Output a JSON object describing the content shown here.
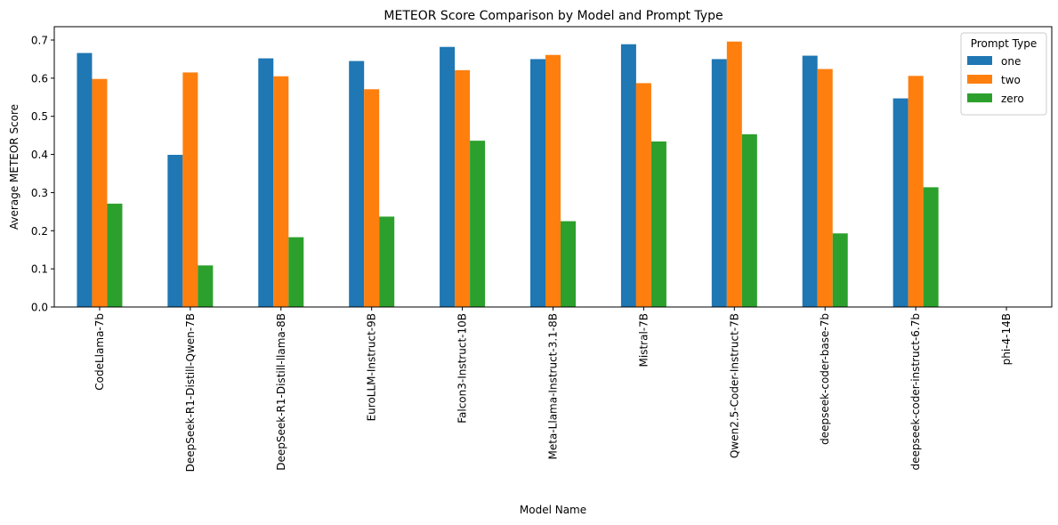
{
  "chart_data": {
    "type": "bar",
    "title": "METEOR Score Comparison by Model and Prompt Type",
    "xlabel": "Model Name",
    "ylabel": "Average METEOR Score",
    "ylim": [
      0,
      0.735
    ],
    "yticks": [
      "0.0",
      "0.1",
      "0.2",
      "0.3",
      "0.4",
      "0.5",
      "0.6",
      "0.7"
    ],
    "legend_title": "Prompt Type",
    "legend_position": "top-right",
    "grid": false,
    "categories": [
      "CodeLlama-7b",
      "DeepSeek-R1-Distill-Qwen-7B",
      "DeepSeek-R1-Distill-llama-8B",
      "EuroLLM-Instruct-9B",
      "Falcon3-Instruct-10B",
      "Meta-Llama-Instruct-3.1-8B",
      "Mistral-7B",
      "Qwen2.5-Coder-Instruct-7B",
      "deepseek-coder-base-7b",
      "deepseek-coder-instruct-6.7b",
      "phi-4-14B"
    ],
    "series": [
      {
        "name": "one",
        "color": "#1f77b4",
        "values": [
          0.666,
          0.399,
          0.652,
          0.645,
          0.682,
          0.65,
          0.689,
          0.65,
          0.659,
          0.547,
          0
        ]
      },
      {
        "name": "two",
        "color": "#ff7f0e",
        "values": [
          0.598,
          0.615,
          0.605,
          0.571,
          0.621,
          0.661,
          0.587,
          0.696,
          0.624,
          0.606,
          0
        ]
      },
      {
        "name": "zero",
        "color": "#2ca02c",
        "values": [
          0.271,
          0.109,
          0.183,
          0.237,
          0.436,
          0.225,
          0.434,
          0.453,
          0.193,
          0.314,
          0
        ]
      }
    ]
  }
}
